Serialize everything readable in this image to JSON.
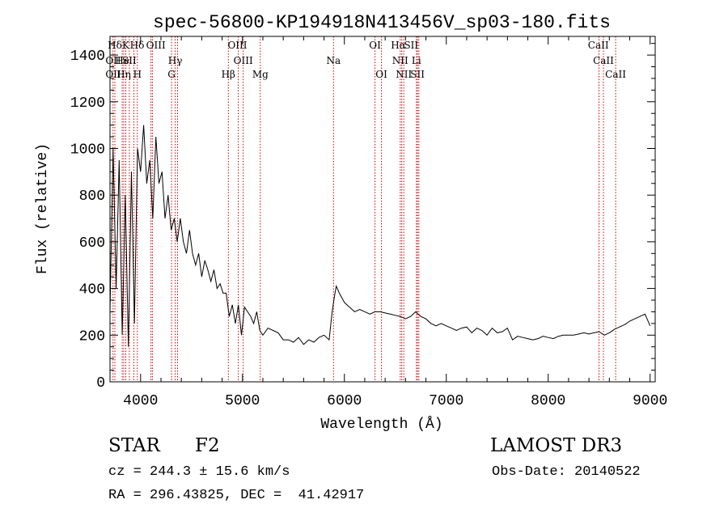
{
  "chart_data": {
    "type": "line",
    "title": "spec-56800-KP194918N413456V_sp03-180.fits",
    "xlabel": "Wavelength (Å)",
    "ylabel": "Flux (relative)",
    "xlim": [
      3700,
      9050
    ],
    "ylim": [
      0,
      1480
    ],
    "xticks": [
      4000,
      5000,
      6000,
      7000,
      8000,
      9000
    ],
    "yticks": [
      0,
      200,
      400,
      600,
      800,
      1000,
      1200,
      1400
    ],
    "xtick_labels": [
      "4000",
      "5000",
      "6000",
      "7000",
      "8000",
      "9000"
    ],
    "ytick_labels": [
      "0",
      "200",
      "400",
      "600",
      "800",
      "1000",
      "1200",
      "1400"
    ],
    "grid": false,
    "legend": "none",
    "line_color": "#000000",
    "marker_color": "#cc0000",
    "series": [
      {
        "x": [
          3700,
          3730,
          3760,
          3790,
          3820,
          3850,
          3880,
          3910,
          3940,
          3970,
          4000,
          4030,
          4060,
          4090,
          4120,
          4150,
          4180,
          4210,
          4240,
          4270,
          4300,
          4330,
          4360,
          4390,
          4420,
          4450,
          4480,
          4510,
          4540,
          4570,
          4600,
          4630,
          4660,
          4690,
          4720,
          4750,
          4780,
          4810,
          4840,
          4870,
          4900,
          4930,
          4960,
          4990,
          5020,
          5050,
          5080,
          5110,
          5140,
          5170,
          5200,
          5250,
          5300,
          5350,
          5400,
          5450,
          5500,
          5550,
          5600,
          5650,
          5700,
          5750,
          5800,
          5850,
          5880,
          5900,
          5920,
          5950,
          6000,
          6050,
          6100,
          6150,
          6200,
          6250,
          6300,
          6350,
          6400,
          6450,
          6500,
          6550,
          6600,
          6650,
          6700,
          6750,
          6800,
          6850,
          6900,
          6950,
          7000,
          7050,
          7100,
          7150,
          7200,
          7250,
          7300,
          7350,
          7400,
          7450,
          7500,
          7550,
          7600,
          7650,
          7700,
          7750,
          7800,
          7850,
          7900,
          7950,
          8000,
          8050,
          8100,
          8150,
          8200,
          8250,
          8300,
          8350,
          8400,
          8450,
          8500,
          8550,
          8600,
          8650,
          8700,
          8750,
          8800,
          8850,
          8900,
          8950,
          9000
        ],
        "y": [
          300,
          1000,
          400,
          950,
          200,
          800,
          150,
          900,
          250,
          1000,
          900,
          1100,
          850,
          950,
          700,
          1050,
          850,
          900,
          700,
          800,
          650,
          700,
          600,
          700,
          600,
          550,
          650,
          550,
          500,
          550,
          450,
          520,
          480,
          430,
          480,
          400,
          420,
          380,
          380,
          280,
          330,
          250,
          330,
          200,
          320,
          300,
          280,
          250,
          300,
          220,
          200,
          230,
          220,
          210,
          180,
          180,
          170,
          190,
          160,
          180,
          170,
          190,
          200,
          180,
          300,
          360,
          410,
          380,
          340,
          320,
          300,
          310,
          300,
          290,
          300,
          300,
          295,
          290,
          285,
          280,
          270,
          280,
          300,
          280,
          270,
          250,
          240,
          250,
          240,
          230,
          220,
          230,
          235,
          210,
          230,
          220,
          200,
          230,
          210,
          215,
          230,
          180,
          195,
          190,
          185,
          180,
          185,
          195,
          190,
          185,
          195,
          200,
          200,
          200,
          205,
          210,
          205,
          210,
          215,
          200,
          210,
          225,
          235,
          245,
          260,
          270,
          280,
          290,
          240
        ]
      }
    ],
    "lines": [
      {
        "name": "Hδ",
        "x": 3748,
        "row": 0
      },
      {
        "name": "K",
        "x": 3855,
        "row": 0
      },
      {
        "name": "Hδ",
        "x": 3966,
        "row": 0
      },
      {
        "name": "OIII",
        "x": 4150,
        "row": 0
      },
      {
        "name": "OIII",
        "x": 4950,
        "row": 0
      },
      {
        "name": "OI",
        "x": 6300,
        "row": 0
      },
      {
        "name": "Hα",
        "x": 6530,
        "row": 0
      },
      {
        "name": "SII",
        "x": 6655,
        "row": 0
      },
      {
        "name": "CaII",
        "x": 8492,
        "row": 0
      },
      {
        "name": "OII",
        "x": 3729,
        "row": 1
      },
      {
        "name": "He",
        "x": 3820,
        "row": 1
      },
      {
        "name": "SII",
        "x": 3890,
        "row": 1
      },
      {
        "name": "Hγ",
        "x": 4340,
        "row": 1
      },
      {
        "name": "OIII",
        "x": 5007,
        "row": 1
      },
      {
        "name": "Na",
        "x": 5893,
        "row": 1
      },
      {
        "name": "NII",
        "x": 6548,
        "row": 1
      },
      {
        "name": "Li",
        "x": 6707,
        "row": 1
      },
      {
        "name": "CaII",
        "x": 8542,
        "row": 1
      },
      {
        "name": "OII",
        "x": 3729,
        "row": 2
      },
      {
        "name": "Hη",
        "x": 3835,
        "row": 2
      },
      {
        "name": "H",
        "x": 3968,
        "row": 2
      },
      {
        "name": "G",
        "x": 4304,
        "row": 2
      },
      {
        "name": "Hβ",
        "x": 4861,
        "row": 2
      },
      {
        "name": "Mg",
        "x": 5175,
        "row": 2
      },
      {
        "name": "OI",
        "x": 6364,
        "row": 2
      },
      {
        "name": "NII",
        "x": 6583,
        "row": 2
      },
      {
        "name": "SII",
        "x": 6717,
        "row": 2
      },
      {
        "name": "CaII",
        "x": 8662,
        "row": 2
      }
    ],
    "line_positions": [
      3729,
      3748,
      3820,
      3835,
      3855,
      3890,
      3934,
      3968,
      4102,
      4116,
      4304,
      4340,
      4363,
      4861,
      4959,
      5007,
      5175,
      5893,
      6300,
      6364,
      6548,
      6563,
      6583,
      6707,
      6717,
      6731,
      8498,
      8542,
      8662
    ]
  },
  "info": {
    "object_class": "STAR",
    "subclass": "F2",
    "survey": "LAMOST DR3",
    "redshift": "cz = 244.3 ± 15.6 km/s",
    "obs_date": "Obs-Date: 20140522",
    "coords": "RA = 296.43825, DEC =  41.42917"
  }
}
